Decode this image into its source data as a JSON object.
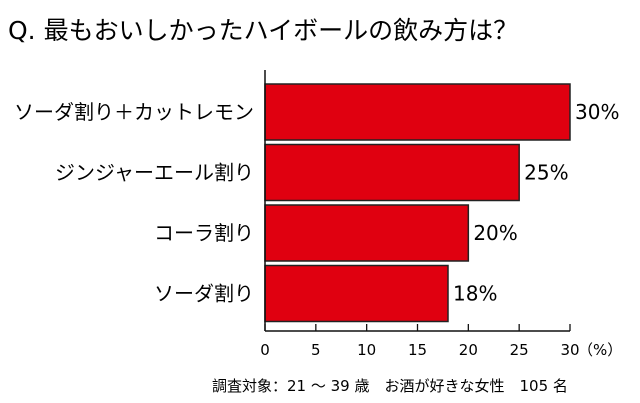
{
  "chart_data": {
    "type": "bar",
    "orientation": "horizontal",
    "title": "Q. 最もおいしかったハイボールの飲み方は？",
    "categories": [
      "ソーダ割り＋カットレモン",
      "ジンジャーエール割り",
      "コーラ割り",
      "ソーダ割り"
    ],
    "values": [
      30,
      25,
      20,
      18
    ],
    "value_labels": [
      "30%",
      "25%",
      "20%",
      "18%"
    ],
    "xlim": [
      0,
      30
    ],
    "x_ticks": [
      0,
      5,
      10,
      15,
      20,
      25,
      30
    ],
    "x_tick_labels": [
      "0",
      "5",
      "10",
      "15",
      "20",
      "25",
      "30"
    ],
    "x_unit": "（%）",
    "grid": false,
    "bar_color": "#e00010",
    "bar_border_color": "#222222",
    "footnote": "調査対象：21 ～ 39 歳　お酒が好きな女性　105 名"
  }
}
